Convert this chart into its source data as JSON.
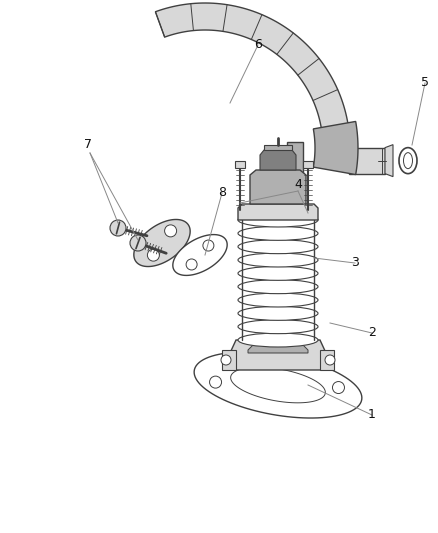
{
  "background_color": "#ffffff",
  "line_color": "#404040",
  "light_gray": "#d8d8d8",
  "mid_gray": "#b0b0b0",
  "dark_gray": "#808080",
  "label_fontsize": 9,
  "fig_width": 4.38,
  "fig_height": 5.33,
  "dpi": 100
}
